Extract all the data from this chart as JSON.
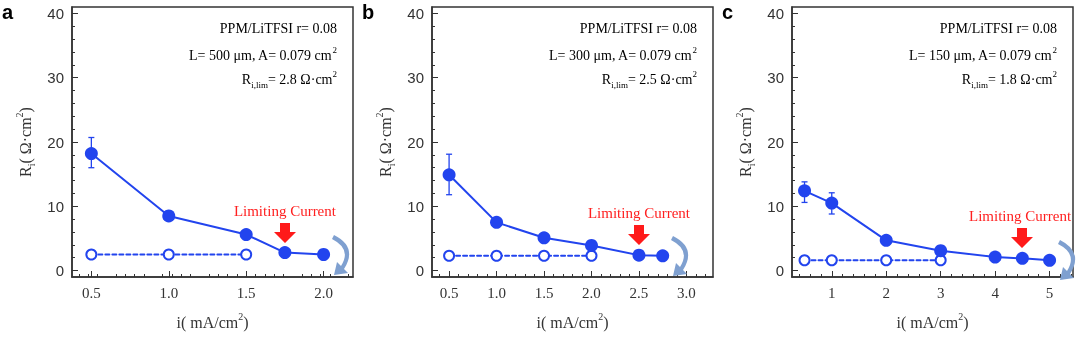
{
  "chart_data": [
    {
      "type": "line",
      "title": "a",
      "xlabel": "i( mA/cm$^{2}$)",
      "ylabel": "R$_{i}$( Ω·cm$^{2}$)",
      "xlim": [
        0.375,
        2.19
      ],
      "xticks": [
        {
          "value": 0.5,
          "label": "0.5"
        },
        {
          "value": 1.0,
          "label": "1.0"
        },
        {
          "value": 1.5,
          "label": "1.5"
        },
        {
          "value": 2.0,
          "label": "2.0"
        }
      ],
      "ylim": [
        -1,
        41
      ],
      "yticks": [
        0,
        10,
        20,
        30,
        40
      ],
      "grid": false,
      "series": [
        {
          "color": "#2244ee",
          "marker": "circle",
          "line_style": "solid",
          "x": [
            0.5,
            1.0,
            1.5,
            1.75,
            2.0
          ],
          "values": [
            18.2,
            8.5,
            5.6,
            2.8,
            2.5
          ],
          "errors": [
            [
              16.0,
              20.7
            ],
            null,
            null,
            null,
            null
          ]
        },
        {
          "color": "#2244ee",
          "marker": "circle",
          "line_style": "dashed",
          "x": [
            0.5,
            1.0,
            1.5
          ],
          "values": [
            2.5,
            2.5,
            2.5
          ]
        }
      ],
      "annotations": [
        "PPM/LiTFSI r= 0.08",
        "L= 500 μm, A= 0.079 cm$^{2}$",
        "R$_{i,lim}$= 2.8 Ω·cm$^{2}$",
        {
          "text": "Limiting Current",
          "x": 1.75,
          "y": 2.8
        }
      ]
    },
    {
      "type": "line",
      "title": "b",
      "xlabel": "i( mA/cm$^{2}$)",
      "ylabel": "R$_{i}$( Ω·cm$^{2}$)",
      "xlim": [
        0.32,
        3.28
      ],
      "xticks": [
        {
          "value": 0.5,
          "label": "0.5"
        },
        {
          "value": 1.0,
          "label": "1.0"
        },
        {
          "value": 1.5,
          "label": "1.5"
        },
        {
          "value": 2.0,
          "label": "2.0"
        },
        {
          "value": 2.5,
          "label": "2.5"
        },
        {
          "value": 3.0,
          "label": "3.0"
        }
      ],
      "ylim": [
        -1,
        41
      ],
      "yticks": [
        0,
        10,
        20,
        30,
        40
      ],
      "grid": false,
      "series": [
        {
          "color": "#2244ee",
          "marker": "circle",
          "line_style": "solid",
          "x": [
            0.5,
            1.0,
            1.5,
            2.0,
            2.5,
            2.75
          ],
          "values": [
            14.9,
            7.5,
            5.1,
            3.9,
            2.4,
            2.3
          ],
          "errors": [
            [
              11.8,
              18.1
            ],
            null,
            null,
            null,
            null,
            null
          ]
        },
        {
          "color": "#2244ee",
          "marker": "circle",
          "line_style": "dashed",
          "x": [
            0.5,
            1.0,
            1.5,
            2.0
          ],
          "values": [
            2.3,
            2.3,
            2.3,
            2.3
          ]
        }
      ],
      "annotations": [
        "PPM/LiTFSI r= 0.08",
        "L= 300 μm, A= 0.079 cm$^{2}$",
        "R$_{i,lim}$= 2.5 Ω·cm$^{2}$",
        {
          "text": "Limiting Current",
          "x": 2.5,
          "y": 2.4
        }
      ]
    },
    {
      "type": "line",
      "title": "c",
      "xlabel": "i( mA/cm$^{2}$)",
      "ylabel": "R$_{i}$( Ω·cm$^{2}$)",
      "xlim": [
        0.27,
        5.43
      ],
      "xticks": [
        1,
        2,
        3,
        4,
        5
      ],
      "ylim": [
        -1,
        41
      ],
      "yticks": [
        0,
        10,
        20,
        30,
        40
      ],
      "grid": false,
      "series": [
        {
          "color": "#2244ee",
          "marker": "circle",
          "line_style": "solid",
          "x": [
            0.5,
            1,
            2,
            3,
            4,
            4.5,
            5
          ],
          "values": [
            12.4,
            10.5,
            4.7,
            3.1,
            2.1,
            1.9,
            1.6
          ],
          "errors": [
            [
              10.6,
              13.8
            ],
            [
              8.8,
              12.1
            ],
            null,
            null,
            null,
            null,
            null
          ]
        },
        {
          "color": "#2244ee",
          "marker": "circle",
          "line_style": "dashed",
          "x": [
            0.5,
            1,
            2,
            3
          ],
          "values": [
            1.6,
            1.6,
            1.6,
            1.6
          ]
        }
      ],
      "annotations": [
        "PPM/LiTFSI r= 0.08",
        "L= 150 μm, A= 0.079 cm$^{2}$",
        "R$_{i,lim}$= 1.8 Ω·cm$^{2}$",
        {
          "text": "Limiting Current",
          "x": 4.5,
          "y": 1.9
        }
      ]
    }
  ]
}
